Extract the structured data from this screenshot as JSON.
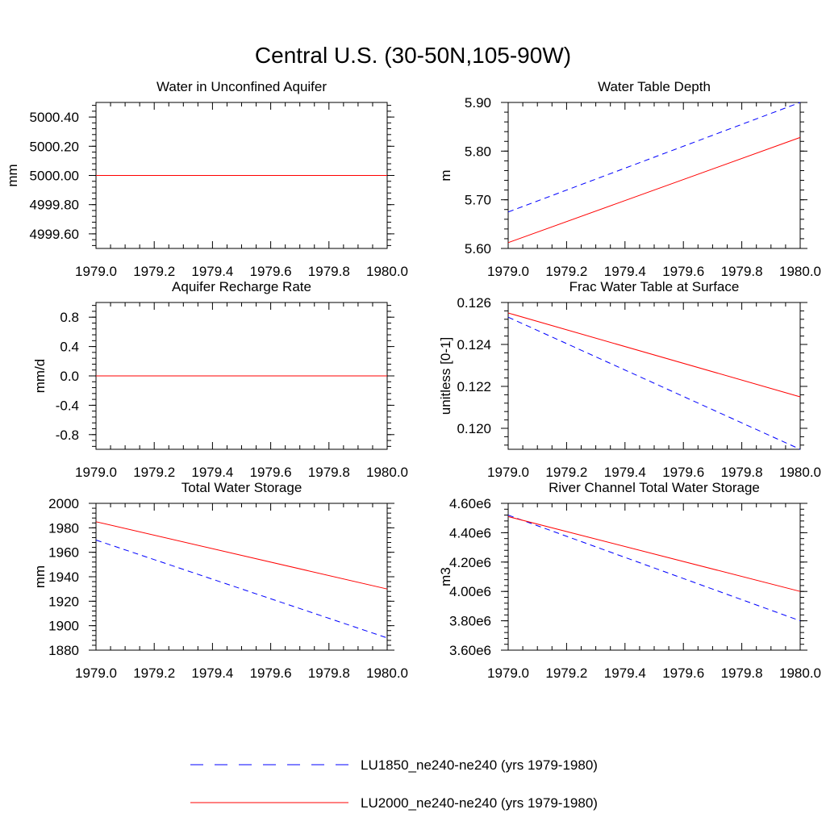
{
  "figure": {
    "title": "Central U.S. (30-50N,105-90W)"
  },
  "legend": {
    "placement": "bottom-center",
    "entries": [
      {
        "label": "LU1850_ne240-ne240 (yrs 1979-1980)",
        "color": "#0000ff",
        "style": "dashed"
      },
      {
        "label": "LU2000_ne240-ne240 (yrs 1979-1980)",
        "color": "#ff0000",
        "style": "solid"
      }
    ]
  },
  "chart_data": [
    {
      "type": "line",
      "title": "Water in Unconfined Aquifer",
      "xlabel": "",
      "ylabel": "mm",
      "xlim": [
        1979.0,
        1980.0
      ],
      "ylim": [
        4999.5,
        5000.5
      ],
      "xticks": [
        "1979.0",
        "1979.2",
        "1979.4",
        "1979.6",
        "1979.8",
        "1980.0"
      ],
      "yticks": [
        {
          "value": 4999.6,
          "label": "4999.60"
        },
        {
          "value": 4999.8,
          "label": "4999.80"
        },
        {
          "value": 5000.0,
          "label": "5000.00"
        },
        {
          "value": 5000.2,
          "label": "5000.20"
        },
        {
          "value": 5000.4,
          "label": "5000.40"
        }
      ],
      "grid": false,
      "series": [
        {
          "name": "LU1850_ne240-ne240 (yrs 1979-1980)",
          "x": [
            1979.0,
            1980.0
          ],
          "y": [
            5000.0,
            5000.0
          ]
        },
        {
          "name": "LU2000_ne240-ne240 (yrs 1979-1980)",
          "x": [
            1979.0,
            1980.0
          ],
          "y": [
            5000.0,
            5000.0
          ]
        }
      ]
    },
    {
      "type": "line",
      "title": "Water Table Depth",
      "xlabel": "",
      "ylabel": "m",
      "xlim": [
        1979.0,
        1980.0
      ],
      "ylim": [
        5.6,
        5.9
      ],
      "xticks": [
        "1979.0",
        "1979.2",
        "1979.4",
        "1979.6",
        "1979.8",
        "1980.0"
      ],
      "yticks": [
        {
          "value": 5.6,
          "label": "5.60"
        },
        {
          "value": 5.7,
          "label": "5.70"
        },
        {
          "value": 5.8,
          "label": "5.80"
        },
        {
          "value": 5.9,
          "label": "5.90"
        }
      ],
      "grid": false,
      "series": [
        {
          "name": "LU1850_ne240-ne240 (yrs 1979-1980)",
          "x": [
            1979.0,
            1980.0
          ],
          "y": [
            5.675,
            5.9
          ]
        },
        {
          "name": "LU2000_ne240-ne240 (yrs 1979-1980)",
          "x": [
            1979.0,
            1980.0
          ],
          "y": [
            5.612,
            5.828
          ]
        }
      ]
    },
    {
      "type": "line",
      "title": "Aquifer Recharge Rate",
      "xlabel": "",
      "ylabel": "mm/d",
      "xlim": [
        1979.0,
        1980.0
      ],
      "ylim": [
        -1.0,
        1.0
      ],
      "xticks": [
        "1979.0",
        "1979.2",
        "1979.4",
        "1979.6",
        "1979.8",
        "1980.0"
      ],
      "yticks": [
        {
          "value": -0.8,
          "label": "-0.8"
        },
        {
          "value": -0.4,
          "label": "-0.4"
        },
        {
          "value": 0.0,
          "label": "0.0"
        },
        {
          "value": 0.4,
          "label": "0.4"
        },
        {
          "value": 0.8,
          "label": "0.8"
        }
      ],
      "grid": false,
      "series": [
        {
          "name": "LU1850_ne240-ne240 (yrs 1979-1980)",
          "x": [
            1979.0,
            1980.0
          ],
          "y": [
            0.0,
            0.0
          ]
        },
        {
          "name": "LU2000_ne240-ne240 (yrs 1979-1980)",
          "x": [
            1979.0,
            1980.0
          ],
          "y": [
            0.0,
            0.0
          ]
        }
      ]
    },
    {
      "type": "line",
      "title": "Frac Water Table at Surface",
      "xlabel": "",
      "ylabel": "unitless [0-1]",
      "xlim": [
        1979.0,
        1980.0
      ],
      "ylim": [
        0.119,
        0.126
      ],
      "xticks": [
        "1979.0",
        "1979.2",
        "1979.4",
        "1979.6",
        "1979.8",
        "1980.0"
      ],
      "yticks": [
        {
          "value": 0.12,
          "label": "0.120"
        },
        {
          "value": 0.122,
          "label": "0.122"
        },
        {
          "value": 0.124,
          "label": "0.124"
        },
        {
          "value": 0.126,
          "label": "0.126"
        }
      ],
      "grid": false,
      "series": [
        {
          "name": "LU1850_ne240-ne240 (yrs 1979-1980)",
          "x": [
            1979.0,
            1980.0
          ],
          "y": [
            0.1253,
            0.119
          ]
        },
        {
          "name": "LU2000_ne240-ne240 (yrs 1979-1980)",
          "x": [
            1979.0,
            1980.0
          ],
          "y": [
            0.1255,
            0.1215
          ]
        }
      ]
    },
    {
      "type": "line",
      "title": "Total Water Storage",
      "xlabel": "",
      "ylabel": "mm",
      "xlim": [
        1979.0,
        1980.0
      ],
      "ylim": [
        1880,
        2000
      ],
      "xticks": [
        "1979.0",
        "1979.2",
        "1979.4",
        "1979.6",
        "1979.8",
        "1980.0"
      ],
      "yticks": [
        {
          "value": 1880,
          "label": "1880"
        },
        {
          "value": 1900,
          "label": "1900"
        },
        {
          "value": 1920,
          "label": "1920"
        },
        {
          "value": 1940,
          "label": "1940"
        },
        {
          "value": 1960,
          "label": "1960"
        },
        {
          "value": 1980,
          "label": "1980"
        },
        {
          "value": 2000,
          "label": "2000"
        }
      ],
      "grid": false,
      "series": [
        {
          "name": "LU1850_ne240-ne240 (yrs 1979-1980)",
          "x": [
            1979.0,
            1980.0
          ],
          "y": [
            1970,
            1890
          ]
        },
        {
          "name": "LU2000_ne240-ne240 (yrs 1979-1980)",
          "x": [
            1979.0,
            1980.0
          ],
          "y": [
            1985,
            1930
          ]
        }
      ]
    },
    {
      "type": "line",
      "title": "River Channel Total Water Storage",
      "xlabel": "",
      "ylabel": "m3",
      "xlim": [
        1979.0,
        1980.0
      ],
      "ylim": [
        3600000,
        4600000
      ],
      "xticks": [
        "1979.0",
        "1979.2",
        "1979.4",
        "1979.6",
        "1979.8",
        "1980.0"
      ],
      "yticks": [
        {
          "value": 3600000,
          "label": "3.60e6"
        },
        {
          "value": 3800000,
          "label": "3.80e6"
        },
        {
          "value": 4000000,
          "label": "4.00e6"
        },
        {
          "value": 4200000,
          "label": "4.20e6"
        },
        {
          "value": 4400000,
          "label": "4.40e6"
        },
        {
          "value": 4600000,
          "label": "4.60e6"
        }
      ],
      "grid": false,
      "series": [
        {
          "name": "LU1850_ne240-ne240 (yrs 1979-1980)",
          "x": [
            1979.0,
            1980.0
          ],
          "y": [
            4520000,
            3800000
          ]
        },
        {
          "name": "LU2000_ne240-ne240 (yrs 1979-1980)",
          "x": [
            1979.0,
            1980.0
          ],
          "y": [
            4510000,
            4000000
          ]
        }
      ]
    }
  ]
}
